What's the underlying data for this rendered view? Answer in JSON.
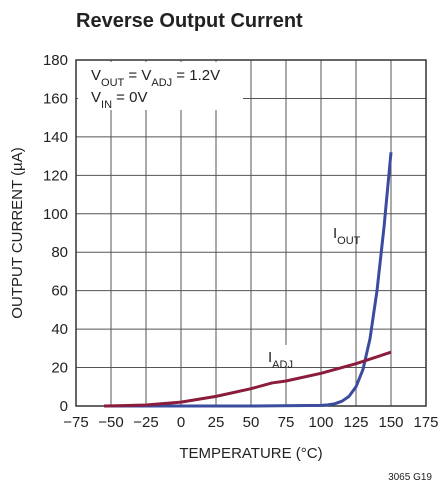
{
  "chart_data": {
    "type": "line",
    "title": "Reverse Output Current",
    "xlabel": "TEMPERATURE (°C)",
    "ylabel": "OUTPUT CURRENT (µA)",
    "footnote": "3065 G19",
    "xlim": [
      -75,
      175
    ],
    "xticks": [
      {
        "value": -75,
        "label": "−75"
      },
      {
        "value": -50,
        "label": "−50"
      },
      {
        "value": -25,
        "label": "−25"
      },
      0,
      25,
      50,
      75,
      100,
      125,
      150,
      175
    ],
    "ylim": [
      0,
      180
    ],
    "yticks": [
      0,
      20,
      40,
      60,
      80,
      100,
      120,
      140,
      160,
      180
    ],
    "grid": true,
    "annotations": [
      {
        "parts": [
          "V",
          "OUT",
          " = V",
          "ADJ",
          " = 1.2V"
        ]
      },
      {
        "parts": [
          "V",
          "IN",
          " = 0V"
        ]
      }
    ],
    "series": [
      {
        "name": [
          "I",
          "OUT"
        ],
        "color": "#3b4c9e",
        "x": [
          -55,
          0,
          50,
          100,
          105,
          110,
          115,
          120,
          125,
          130,
          135,
          140,
          145,
          150
        ],
        "values": [
          0,
          0,
          0,
          0.3,
          0.6,
          1.2,
          2.5,
          5,
          10,
          19,
          35,
          60,
          93,
          132
        ]
      },
      {
        "name": [
          "I",
          "ADJ"
        ],
        "color": "#8b1c3c",
        "x": [
          -55,
          -25,
          0,
          25,
          50,
          65,
          75,
          100,
          125,
          150
        ],
        "values": [
          0,
          0.5,
          2,
          5,
          9,
          12,
          13,
          17,
          22,
          28
        ]
      }
    ]
  }
}
